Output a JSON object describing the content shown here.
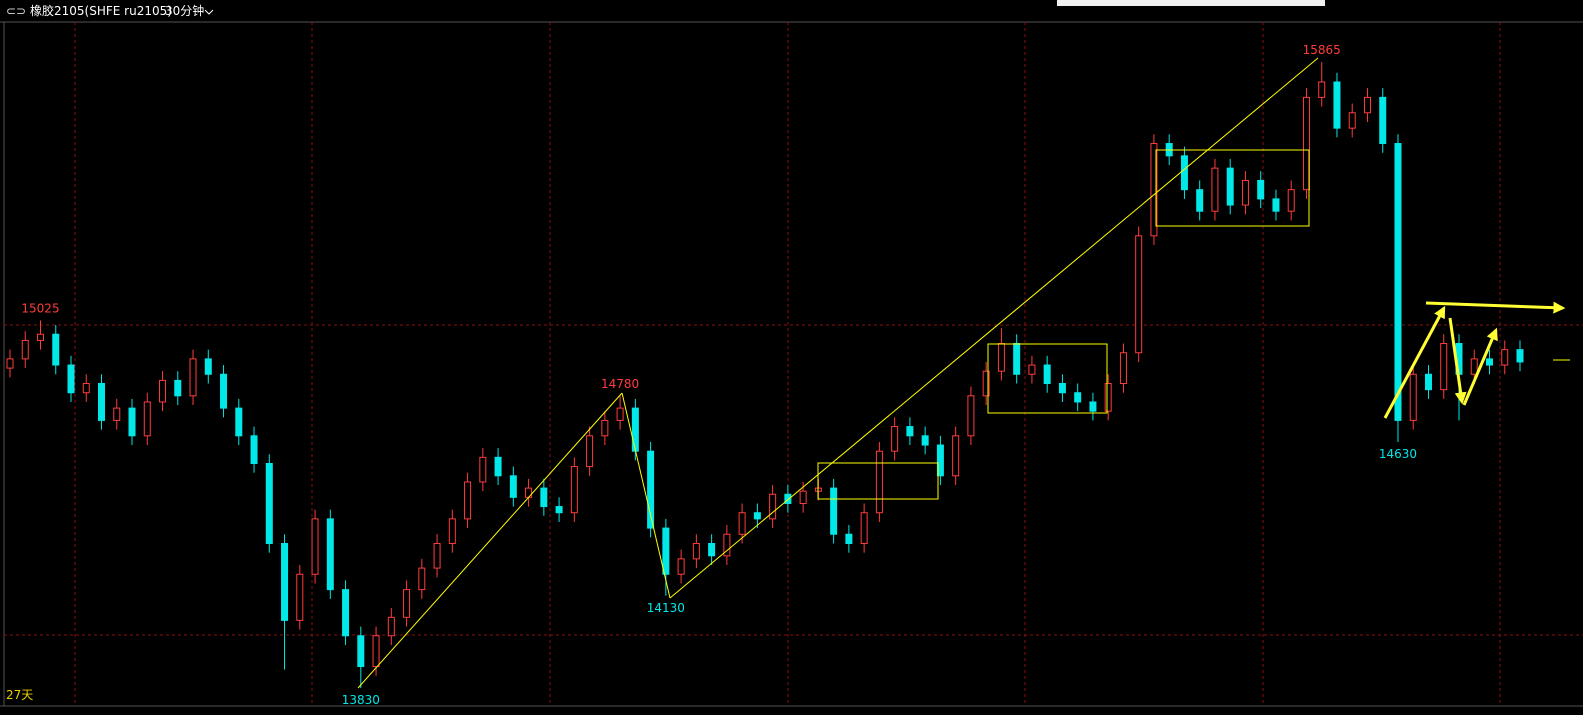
{
  "chart_data": {
    "type": "candlestick",
    "title": "橡胶2105(SHFE ru2105)",
    "subtitle": "30分钟",
    "annotations": [
      "27天"
    ],
    "up_color": "#ff3c3c",
    "down_color": "#00e8e8",
    "grid": true,
    "ylim": [
      13775,
      15995
    ],
    "high_labels": [
      15025,
      14780,
      15865
    ],
    "low_labels": [
      13830,
      14130,
      14630
    ],
    "categories": [
      null,
      null,
      null,
      null,
      null,
      null,
      null,
      null,
      null,
      null,
      null,
      null,
      null,
      null,
      null,
      null,
      null,
      null,
      null,
      null,
      null,
      null,
      null,
      null,
      null,
      null,
      null,
      null,
      null,
      null,
      null,
      null,
      null,
      null,
      null,
      null,
      null,
      null,
      null,
      null,
      null,
      null,
      null,
      null,
      null,
      null,
      null,
      null,
      null,
      null,
      null,
      null,
      null,
      null,
      null,
      null,
      null,
      null,
      null,
      null,
      null,
      null,
      null,
      null,
      null,
      null,
      null,
      null,
      null,
      null,
      null,
      null,
      null,
      null,
      null,
      null,
      null,
      null,
      null,
      null,
      null,
      null,
      null,
      null,
      null,
      null,
      null,
      null,
      null,
      null,
      null,
      null,
      null,
      null,
      null,
      null,
      null,
      null,
      null,
      null
    ],
    "open": [
      14870,
      14900,
      14960,
      14980,
      14880,
      14790,
      14820,
      14700,
      14740,
      14650,
      14760,
      14830,
      14780,
      14900,
      14850,
      14740,
      14650,
      14560,
      14300,
      14050,
      14200,
      14380,
      14150,
      14000,
      13900,
      14000,
      14060,
      14150,
      14220,
      14300,
      14380,
      14500,
      14580,
      14520,
      14450,
      14480,
      14420,
      14400,
      14550,
      14650,
      14700,
      14740,
      14600,
      14350,
      14200,
      14250,
      14300,
      14260,
      14330,
      14400,
      14380,
      14460,
      14430,
      14470,
      14480,
      14330,
      14300,
      14400,
      14600,
      14680,
      14650,
      14620,
      14520,
      14650,
      14780,
      14860,
      14950,
      14850,
      14880,
      14820,
      14790,
      14760,
      14730,
      14820,
      14920,
      15300,
      15600,
      15560,
      15450,
      15380,
      15520,
      15400,
      15480,
      15420,
      15380,
      15450,
      15750,
      15800,
      15650,
      15700,
      15750,
      15600,
      14700,
      14850,
      14800,
      14950,
      14850,
      14900,
      14880,
      14930
    ],
    "high": [
      14930,
      14990,
      15025,
      15010,
      14910,
      14850,
      14850,
      14770,
      14770,
      14790,
      14860,
      14860,
      14930,
      14930,
      14880,
      14770,
      14680,
      14590,
      14330,
      14230,
      14410,
      14410,
      14180,
      14030,
      14030,
      14090,
      14180,
      14250,
      14330,
      14410,
      14530,
      14610,
      14610,
      14550,
      14510,
      14510,
      14450,
      14580,
      14680,
      14730,
      14780,
      14770,
      14630,
      14380,
      14280,
      14330,
      14330,
      14360,
      14430,
      14430,
      14490,
      14490,
      14500,
      14510,
      14510,
      14360,
      14430,
      14630,
      14710,
      14710,
      14680,
      14650,
      14680,
      14810,
      14890,
      15000,
      14980,
      14910,
      14910,
      14850,
      14820,
      14790,
      14850,
      14950,
      15330,
      15630,
      15630,
      15590,
      15480,
      15550,
      15550,
      15510,
      15510,
      15450,
      15480,
      15780,
      15865,
      15830,
      15730,
      15780,
      15780,
      15630,
      14880,
      14880,
      14980,
      14980,
      14930,
      14930,
      14960,
      14960
    ],
    "low": [
      14840,
      14870,
      14930,
      14850,
      14760,
      14760,
      14670,
      14670,
      14620,
      14620,
      14730,
      14750,
      14750,
      14820,
      14710,
      14620,
      14530,
      14270,
      13890,
      14020,
      14170,
      14120,
      13970,
      13830,
      13870,
      13970,
      14030,
      14120,
      14190,
      14270,
      14350,
      14470,
      14490,
      14420,
      14420,
      14390,
      14370,
      14370,
      14520,
      14620,
      14670,
      14570,
      14320,
      14130,
      14170,
      14220,
      14230,
      14230,
      14300,
      14350,
      14350,
      14400,
      14400,
      14440,
      14300,
      14270,
      14270,
      14370,
      14570,
      14620,
      14590,
      14490,
      14490,
      14620,
      14750,
      14830,
      14820,
      14820,
      14790,
      14760,
      14730,
      14700,
      14700,
      14790,
      14890,
      15270,
      15530,
      15420,
      15350,
      15350,
      15370,
      15370,
      15390,
      15350,
      15350,
      15420,
      15720,
      15620,
      15620,
      15670,
      15570,
      14630,
      14670,
      14770,
      14770,
      14700,
      14820,
      14850,
      14850,
      14860
    ],
    "close": [
      14900,
      14960,
      14980,
      14880,
      14790,
      14820,
      14700,
      14740,
      14650,
      14760,
      14830,
      14780,
      14900,
      14850,
      14740,
      14650,
      14560,
      14300,
      14050,
      14200,
      14380,
      14150,
      14000,
      13900,
      14000,
      14060,
      14150,
      14220,
      14300,
      14380,
      14500,
      14580,
      14520,
      14450,
      14480,
      14420,
      14400,
      14550,
      14650,
      14700,
      14740,
      14600,
      14350,
      14200,
      14250,
      14300,
      14260,
      14330,
      14400,
      14380,
      14460,
      14430,
      14470,
      14480,
      14330,
      14300,
      14400,
      14600,
      14680,
      14650,
      14620,
      14520,
      14650,
      14780,
      14860,
      14950,
      14850,
      14880,
      14820,
      14790,
      14760,
      14730,
      14820,
      14920,
      15300,
      15600,
      15560,
      15450,
      15380,
      15520,
      15400,
      15480,
      15420,
      15380,
      15450,
      15750,
      15800,
      15650,
      15700,
      15750,
      15600,
      14700,
      14850,
      14800,
      14950,
      14850,
      14900,
      14880,
      14930,
      14890
    ]
  }
}
